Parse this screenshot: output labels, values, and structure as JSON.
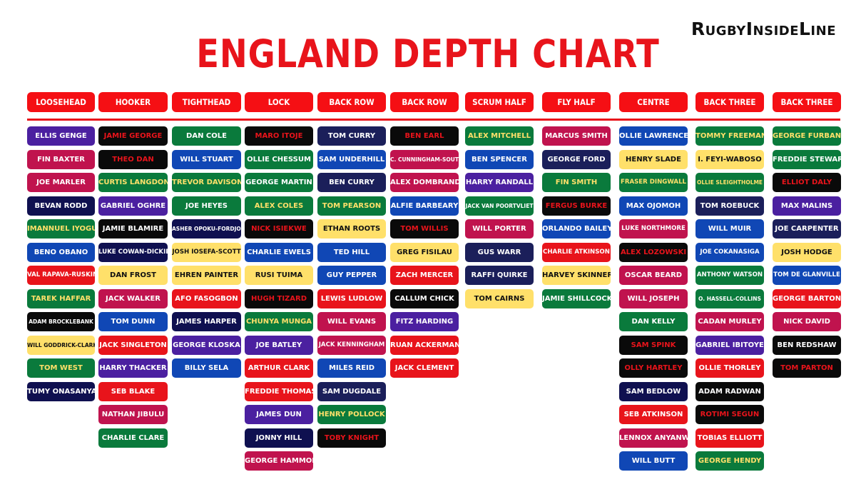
{
  "brand": "RugbyInsideLine",
  "title": "ENGLAND DEPTH CHART",
  "colors": {
    "red_accent": "#f50f14",
    "purple": "#4b20a0",
    "maroon": "#c0134e",
    "navy": "#1b1f5a",
    "dark_navy": "#0f1050",
    "green": "#0a7a3c",
    "blue": "#1047b5",
    "black": "#0a0a0a",
    "yellow": "#ffe06a",
    "red": "#e8141b"
  },
  "columns": [
    {
      "position": "LOOSEHEAD",
      "players": [
        {
          "name": "ELLIS GENGE",
          "bg": "purple",
          "fg": "white"
        },
        {
          "name": "FIN BAXTER",
          "bg": "maroon",
          "fg": "white"
        },
        {
          "name": "JOE MARLER",
          "bg": "maroon",
          "fg": "white"
        },
        {
          "name": "BEVAN RODD",
          "bg": "dark_navy",
          "fg": "white"
        },
        {
          "name": "IMANNUEL IYOGUN",
          "bg": "green",
          "fg": "yellow"
        },
        {
          "name": "BENO OBANO",
          "bg": "blue",
          "fg": "white"
        },
        {
          "name": "VAL RAPAVA-RUSKIN",
          "bg": "red",
          "fg": "white",
          "size": "md"
        },
        {
          "name": "TAREK HAFFAR",
          "bg": "green",
          "fg": "yellow"
        },
        {
          "name": "ADAM BROCKLEBANK",
          "bg": "black",
          "fg": "white",
          "size": "sm"
        },
        {
          "name": "WILL GODDRICK-CLARKE",
          "bg": "yellow",
          "fg": "black",
          "size": "sm"
        },
        {
          "name": "TOM WEST",
          "bg": "green",
          "fg": "yellow"
        },
        {
          "name": "TUMY ONASANYA",
          "bg": "dark_navy",
          "fg": "white"
        }
      ]
    },
    {
      "position": "HOOKER",
      "players": [
        {
          "name": "JAMIE GEORGE",
          "bg": "black",
          "fg": "red"
        },
        {
          "name": "THEO DAN",
          "bg": "black",
          "fg": "red"
        },
        {
          "name": "CURTIS LANGDON",
          "bg": "green",
          "fg": "yellow"
        },
        {
          "name": "GABRIEL OGHRE",
          "bg": "purple",
          "fg": "white"
        },
        {
          "name": "JAMIE BLAMIRE",
          "bg": "black",
          "fg": "white"
        },
        {
          "name": "LUKE COWAN-DICKIE",
          "bg": "dark_navy",
          "fg": "white",
          "size": "md"
        },
        {
          "name": "DAN FROST",
          "bg": "yellow",
          "fg": "black"
        },
        {
          "name": "JACK WALKER",
          "bg": "maroon",
          "fg": "white"
        },
        {
          "name": "TOM DUNN",
          "bg": "blue",
          "fg": "white"
        },
        {
          "name": "JACK SINGLETON",
          "bg": "red",
          "fg": "white"
        },
        {
          "name": "HARRY THACKER",
          "bg": "purple",
          "fg": "white"
        },
        {
          "name": "SEB BLAKE",
          "bg": "red",
          "fg": "white"
        },
        {
          "name": "NATHAN JIBULU",
          "bg": "maroon",
          "fg": "white"
        },
        {
          "name": "CHARLIE CLARE",
          "bg": "green",
          "fg": "white"
        }
      ]
    },
    {
      "position": "TIGHTHEAD",
      "players": [
        {
          "name": "DAN COLE",
          "bg": "green",
          "fg": "white"
        },
        {
          "name": "WILL STUART",
          "bg": "blue",
          "fg": "white"
        },
        {
          "name": "TREVOR DAVISON",
          "bg": "green",
          "fg": "yellow"
        },
        {
          "name": "JOE HEYES",
          "bg": "green",
          "fg": "white"
        },
        {
          "name": "ASHER OPOKU-FORDJOUR",
          "bg": "dark_navy",
          "fg": "white",
          "size": "sm"
        },
        {
          "name": "JOSH IOSEFA-SCOTT",
          "bg": "yellow",
          "fg": "black",
          "size": "md"
        },
        {
          "name": "EHREN PAINTER",
          "bg": "yellow",
          "fg": "black"
        },
        {
          "name": "AFO FASOGBON",
          "bg": "red",
          "fg": "white"
        },
        {
          "name": "JAMES HARPER",
          "bg": "dark_navy",
          "fg": "white"
        },
        {
          "name": "GEORGE KLOSKA",
          "bg": "purple",
          "fg": "white"
        },
        {
          "name": "BILLY SELA",
          "bg": "blue",
          "fg": "white"
        }
      ]
    },
    {
      "position": "LOCK",
      "players": [
        {
          "name": "MARO ITOJE",
          "bg": "black",
          "fg": "red"
        },
        {
          "name": "OLLIE CHESSUM",
          "bg": "green",
          "fg": "white"
        },
        {
          "name": "GEORGE MARTIN",
          "bg": "green",
          "fg": "white"
        },
        {
          "name": "ALEX COLES",
          "bg": "green",
          "fg": "yellow"
        },
        {
          "name": "NICK ISIEKWE",
          "bg": "black",
          "fg": "red"
        },
        {
          "name": "CHARLIE EWELS",
          "bg": "blue",
          "fg": "white"
        },
        {
          "name": "RUSI TUIMA",
          "bg": "yellow",
          "fg": "black"
        },
        {
          "name": "HUGH TIZARD",
          "bg": "black",
          "fg": "red"
        },
        {
          "name": "CHUNYA MUNGA",
          "bg": "green",
          "fg": "yellow"
        },
        {
          "name": "JOE BATLEY",
          "bg": "purple",
          "fg": "white"
        },
        {
          "name": "ARTHUR CLARK",
          "bg": "red",
          "fg": "white"
        },
        {
          "name": "FREDDIE THOMAS",
          "bg": "red",
          "fg": "white"
        },
        {
          "name": "JAMES DUN",
          "bg": "purple",
          "fg": "white"
        },
        {
          "name": "JONNY HILL",
          "bg": "dark_navy",
          "fg": "white"
        },
        {
          "name": "GEORGE HAMMOND",
          "bg": "maroon",
          "fg": "white"
        }
      ]
    },
    {
      "position": "BACK ROW",
      "players": [
        {
          "name": "TOM CURRY",
          "bg": "navy",
          "fg": "white"
        },
        {
          "name": "SAM UNDERHILL",
          "bg": "blue",
          "fg": "white"
        },
        {
          "name": "BEN CURRY",
          "bg": "navy",
          "fg": "white"
        },
        {
          "name": "TOM PEARSON",
          "bg": "green",
          "fg": "yellow"
        },
        {
          "name": "ETHAN ROOTS",
          "bg": "yellow",
          "fg": "black"
        },
        {
          "name": "TED HILL",
          "bg": "blue",
          "fg": "white"
        },
        {
          "name": "GUY PEPPER",
          "bg": "blue",
          "fg": "white"
        },
        {
          "name": "LEWIS LUDLOW",
          "bg": "red",
          "fg": "white"
        },
        {
          "name": "WILL EVANS",
          "bg": "maroon",
          "fg": "white"
        },
        {
          "name": "JACK KENNINGHAM",
          "bg": "maroon",
          "fg": "white",
          "size": "md"
        },
        {
          "name": "MILES REID",
          "bg": "blue",
          "fg": "white"
        },
        {
          "name": "SAM DUGDALE",
          "bg": "navy",
          "fg": "white"
        },
        {
          "name": "HENRY POLLOCK",
          "bg": "green",
          "fg": "yellow"
        },
        {
          "name": "TOBY KNIGHT",
          "bg": "black",
          "fg": "red"
        }
      ]
    },
    {
      "position": "BACK ROW",
      "players": [
        {
          "name": "BEN EARL",
          "bg": "black",
          "fg": "red"
        },
        {
          "name": "C. CUNNINGHAM-SOUTH",
          "bg": "maroon",
          "fg": "white",
          "size": "sm"
        },
        {
          "name": "ALEX DOMBRANDT",
          "bg": "maroon",
          "fg": "white"
        },
        {
          "name": "ALFIE BARBEARY",
          "bg": "blue",
          "fg": "white"
        },
        {
          "name": "TOM WILLIS",
          "bg": "black",
          "fg": "red"
        },
        {
          "name": "GREG FISILAU",
          "bg": "yellow",
          "fg": "black"
        },
        {
          "name": "ZACH MERCER",
          "bg": "red",
          "fg": "white"
        },
        {
          "name": "CALLUM CHICK",
          "bg": "black",
          "fg": "white"
        },
        {
          "name": "FITZ HARDING",
          "bg": "purple",
          "fg": "white"
        },
        {
          "name": "RUAN ACKERMANN",
          "bg": "red",
          "fg": "white"
        },
        {
          "name": "JACK CLEMENT",
          "bg": "red",
          "fg": "white"
        }
      ]
    },
    {
      "position": "SCRUM HALF",
      "players": [
        {
          "name": "ALEX MITCHELL",
          "bg": "green",
          "fg": "yellow"
        },
        {
          "name": "BEN SPENCER",
          "bg": "blue",
          "fg": "white"
        },
        {
          "name": "HARRY RANDALL",
          "bg": "purple",
          "fg": "white"
        },
        {
          "name": "JACK VAN POORTVLIET",
          "bg": "green",
          "fg": "white",
          "size": "sm"
        },
        {
          "name": "WILL PORTER",
          "bg": "maroon",
          "fg": "white"
        },
        {
          "name": "GUS WARR",
          "bg": "navy",
          "fg": "white"
        },
        {
          "name": "RAFFI QUIRKE",
          "bg": "navy",
          "fg": "white"
        },
        {
          "name": "TOM CAIRNS",
          "bg": "yellow",
          "fg": "black"
        }
      ]
    },
    {
      "position": "FLY HALF",
      "players": [
        {
          "name": "MARCUS SMITH",
          "bg": "maroon",
          "fg": "white"
        },
        {
          "name": "GEORGE FORD",
          "bg": "navy",
          "fg": "white"
        },
        {
          "name": "FIN SMITH",
          "bg": "green",
          "fg": "yellow"
        },
        {
          "name": "FERGUS BURKE",
          "bg": "black",
          "fg": "red"
        },
        {
          "name": "ORLANDO BAILEY",
          "bg": "blue",
          "fg": "white"
        },
        {
          "name": "CHARLIE ATKINSON",
          "bg": "red",
          "fg": "white",
          "size": "md"
        },
        {
          "name": "HARVEY SKINNER",
          "bg": "yellow",
          "fg": "black"
        },
        {
          "name": "JAMIE SHILLCOCK",
          "bg": "green",
          "fg": "white"
        }
      ]
    },
    {
      "position": "CENTRE",
      "players": [
        {
          "name": "OLLIE LAWRENCE",
          "bg": "blue",
          "fg": "white"
        },
        {
          "name": "HENRY SLADE",
          "bg": "yellow",
          "fg": "black"
        },
        {
          "name": "FRASER DINGWALL",
          "bg": "green",
          "fg": "yellow",
          "size": "md"
        },
        {
          "name": "MAX OJOMOH",
          "bg": "blue",
          "fg": "white"
        },
        {
          "name": "LUKE NORTHMORE",
          "bg": "maroon",
          "fg": "white",
          "size": "md"
        },
        {
          "name": "ALEX LOZOWSKI",
          "bg": "black",
          "fg": "red"
        },
        {
          "name": "OSCAR BEARD",
          "bg": "maroon",
          "fg": "white"
        },
        {
          "name": "WILL JOSEPH",
          "bg": "maroon",
          "fg": "white"
        },
        {
          "name": "DAN KELLY",
          "bg": "green",
          "fg": "white"
        },
        {
          "name": "SAM SPINK",
          "bg": "black",
          "fg": "red"
        },
        {
          "name": "OLLY HARTLEY",
          "bg": "black",
          "fg": "red"
        },
        {
          "name": "SAM BEDLOW",
          "bg": "dark_navy",
          "fg": "white"
        },
        {
          "name": "SEB ATKINSON",
          "bg": "red",
          "fg": "white"
        },
        {
          "name": "LENNOX ANYANWU",
          "bg": "maroon",
          "fg": "white"
        },
        {
          "name": "WILL BUTT",
          "bg": "blue",
          "fg": "white"
        }
      ]
    },
    {
      "position": "BACK THREE",
      "players": [
        {
          "name": "TOMMY FREEMAN",
          "bg": "green",
          "fg": "yellow"
        },
        {
          "name": "I. FEYI-WABOSO",
          "bg": "yellow",
          "fg": "black"
        },
        {
          "name": "OLLIE SLEIGHTHOLME",
          "bg": "green",
          "fg": "yellow",
          "size": "sm"
        },
        {
          "name": "TOM ROEBUCK",
          "bg": "navy",
          "fg": "white"
        },
        {
          "name": "WILL MUIR",
          "bg": "blue",
          "fg": "white"
        },
        {
          "name": "JOE COKANASIGA",
          "bg": "blue",
          "fg": "white",
          "size": "md"
        },
        {
          "name": "ANTHONY WATSON",
          "bg": "green",
          "fg": "white",
          "size": "md"
        },
        {
          "name": "O. HASSELL-COLLINS",
          "bg": "green",
          "fg": "white",
          "size": "sm"
        },
        {
          "name": "CADAN MURLEY",
          "bg": "maroon",
          "fg": "white"
        },
        {
          "name": "GABRIEL IBITOYE",
          "bg": "purple",
          "fg": "white"
        },
        {
          "name": "OLLIE THORLEY",
          "bg": "red",
          "fg": "white"
        },
        {
          "name": "ADAM RADWAN",
          "bg": "black",
          "fg": "white"
        },
        {
          "name": "ROTIMI SEGUN",
          "bg": "black",
          "fg": "red"
        },
        {
          "name": "TOBIAS ELLIOTT",
          "bg": "red",
          "fg": "white"
        },
        {
          "name": "GEORGE HENDY",
          "bg": "green",
          "fg": "yellow"
        }
      ]
    },
    {
      "position": "BACK THREE",
      "players": [
        {
          "name": "GEORGE FURBANK",
          "bg": "green",
          "fg": "yellow"
        },
        {
          "name": "FREDDIE STEWARD",
          "bg": "green",
          "fg": "white"
        },
        {
          "name": "ELLIOT DALY",
          "bg": "black",
          "fg": "red"
        },
        {
          "name": "MAX MALINS",
          "bg": "purple",
          "fg": "white"
        },
        {
          "name": "JOE CARPENTER",
          "bg": "navy",
          "fg": "white"
        },
        {
          "name": "JOSH HODGE",
          "bg": "yellow",
          "fg": "black"
        },
        {
          "name": "TOM DE GLANVILLE",
          "bg": "blue",
          "fg": "white",
          "size": "md"
        },
        {
          "name": "GEORGE BARTON",
          "bg": "red",
          "fg": "white"
        },
        {
          "name": "NICK DAVID",
          "bg": "maroon",
          "fg": "white"
        },
        {
          "name": "BEN REDSHAW",
          "bg": "black",
          "fg": "white"
        },
        {
          "name": "TOM PARTON",
          "bg": "black",
          "fg": "red"
        }
      ]
    }
  ]
}
